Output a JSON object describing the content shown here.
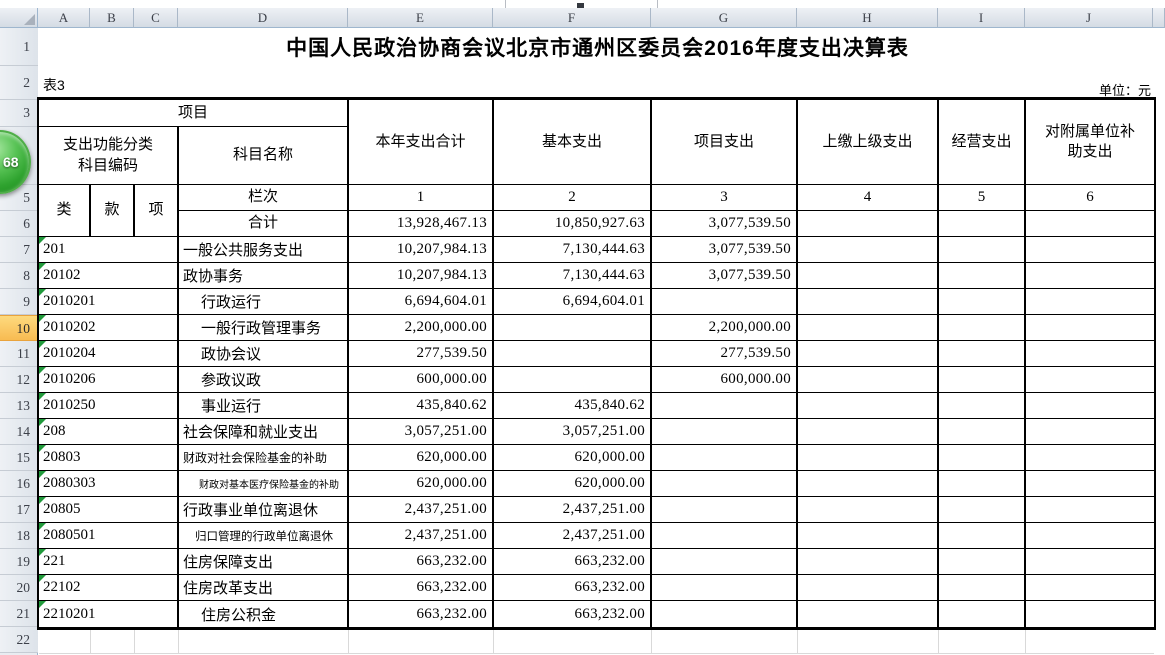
{
  "grid": {
    "columns": [
      "A",
      "B",
      "C",
      "D",
      "E",
      "F",
      "G",
      "H",
      "I",
      "J"
    ],
    "rows": [
      "1",
      "2",
      "3",
      "4",
      "5",
      "6",
      "7",
      "8",
      "9",
      "10",
      "11",
      "12",
      "13",
      "14",
      "15",
      "16",
      "17",
      "18",
      "19",
      "20",
      "21",
      "22"
    ],
    "active_row": "10"
  },
  "overlay_badge": {
    "value": "68",
    "color": "#2fa32f"
  },
  "sheet": {
    "title": "中国人民政治协商会议北京市通州区委员会2016年度支出决算表",
    "table_label": "表3",
    "unit_label": "单位：元",
    "header": {
      "project": "项目",
      "func_code": "支出功能分类\n科目编码",
      "subject_name": "科目名称",
      "col_year_total": "本年支出合计",
      "col_basic": "基本支出",
      "col_project": "项目支出",
      "col_upper": "上缴上级支出",
      "col_operating": "经营支出",
      "col_subsidy": "对附属单位补\n助支出",
      "class": "类",
      "section": "款",
      "item": "项",
      "lanci": "栏次",
      "heji": "合计",
      "col_nums": [
        "1",
        "2",
        "3",
        "4",
        "5",
        "6"
      ]
    },
    "totals": {
      "total": "13,928,467.13",
      "basic": "10,850,927.63",
      "project": "3,077,539.50"
    },
    "rows": [
      {
        "code": "201",
        "name": "一般公共服务支出",
        "level": 1,
        "total": "10,207,984.13",
        "basic": "7,130,444.63",
        "project": "3,077,539.50"
      },
      {
        "code": "20102",
        "name": "政协事务",
        "level": 1,
        "total": "10,207,984.13",
        "basic": "7,130,444.63",
        "project": "3,077,539.50"
      },
      {
        "code": "2010201",
        "name": "行政运行",
        "level": 2,
        "total": "6,694,604.01",
        "basic": "6,694,604.01"
      },
      {
        "code": "2010202",
        "name": "一般行政管理事务",
        "level": 2,
        "total": "2,200,000.00",
        "project": "2,200,000.00"
      },
      {
        "code": "2010204",
        "name": "政协会议",
        "level": 2,
        "total": "277,539.50",
        "project": "277,539.50"
      },
      {
        "code": "2010206",
        "name": "参政议政",
        "level": 2,
        "total": "600,000.00",
        "project": "600,000.00"
      },
      {
        "code": "2010250",
        "name": "事业运行",
        "level": 2,
        "total": "435,840.62",
        "basic": "435,840.62"
      },
      {
        "code": "208",
        "name": "社会保障和就业支出",
        "level": 1,
        "total": "3,057,251.00",
        "basic": "3,057,251.00"
      },
      {
        "code": "20803",
        "name": "财政对社会保险基金的补助",
        "level": 1,
        "shrink": 1,
        "total": "620,000.00",
        "basic": "620,000.00"
      },
      {
        "code": "2080303",
        "name": "财政对基本医疗保险基金的补助",
        "level": 2,
        "shrink": 2,
        "total": "620,000.00",
        "basic": "620,000.00"
      },
      {
        "code": "20805",
        "name": "行政事业单位离退休",
        "level": 1,
        "total": "2,437,251.00",
        "basic": "2,437,251.00"
      },
      {
        "code": "2080501",
        "name": "归口管理的行政单位离退休",
        "level": 2,
        "shrink": 1,
        "total": "2,437,251.00",
        "basic": "2,437,251.00"
      },
      {
        "code": "221",
        "name": "住房保障支出",
        "level": 1,
        "total": "663,232.00",
        "basic": "663,232.00"
      },
      {
        "code": "22102",
        "name": "住房改革支出",
        "level": 1,
        "total": "663,232.00",
        "basic": "663,232.00"
      },
      {
        "code": "2210201",
        "name": "住房公积金",
        "level": 2,
        "total": "663,232.00",
        "basic": "663,232.00"
      }
    ]
  }
}
